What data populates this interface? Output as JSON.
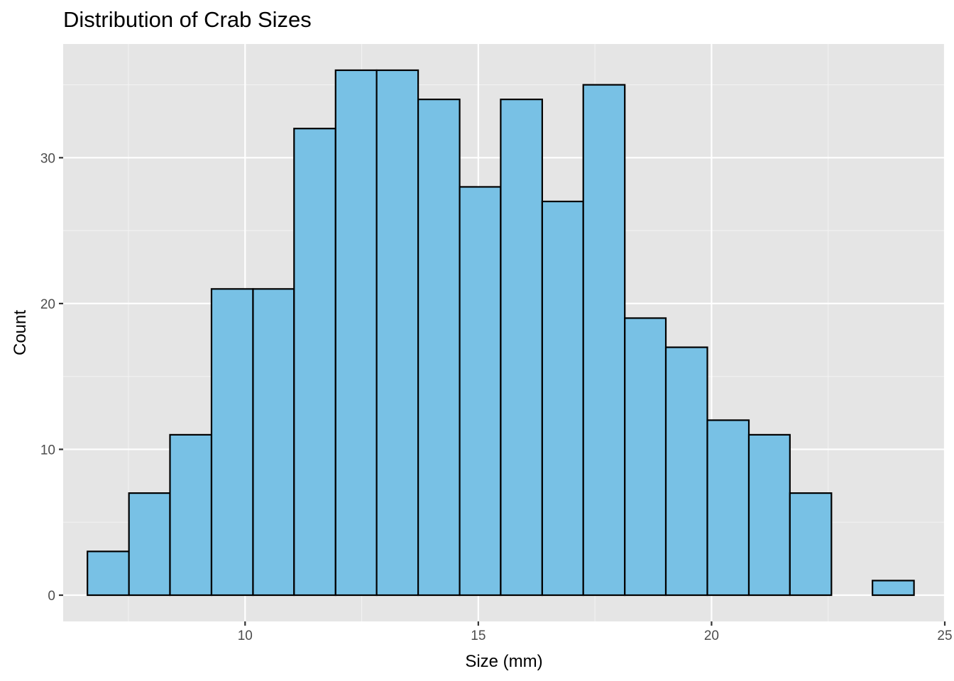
{
  "chart_data": {
    "type": "bar",
    "subtype": "histogram",
    "title": "Distribution of Crab Sizes",
    "xlabel": "Size (mm)",
    "ylabel": "Count",
    "xlim": [
      6.1,
      25.0
    ],
    "ylim": [
      -1.8,
      37.8
    ],
    "x_ticks": [
      10,
      15,
      20,
      25
    ],
    "y_ticks": [
      0,
      10,
      20,
      30
    ],
    "x_tick_labels": [
      "10",
      "15",
      "20",
      "25"
    ],
    "y_tick_labels": [
      "0",
      "10",
      "20",
      "30"
    ],
    "grid": true,
    "bins": [
      {
        "x0": 6.62,
        "x1": 7.51,
        "count": 3
      },
      {
        "x0": 7.51,
        "x1": 8.39,
        "count": 7
      },
      {
        "x0": 8.39,
        "x1": 9.28,
        "count": 11
      },
      {
        "x0": 9.28,
        "x1": 10.17,
        "count": 21
      },
      {
        "x0": 10.17,
        "x1": 11.05,
        "count": 21
      },
      {
        "x0": 11.05,
        "x1": 11.94,
        "count": 32
      },
      {
        "x0": 11.94,
        "x1": 12.82,
        "count": 36
      },
      {
        "x0": 12.82,
        "x1": 13.71,
        "count": 36
      },
      {
        "x0": 13.71,
        "x1": 14.6,
        "count": 34
      },
      {
        "x0": 14.6,
        "x1": 15.48,
        "count": 28
      },
      {
        "x0": 15.48,
        "x1": 16.37,
        "count": 34
      },
      {
        "x0": 16.37,
        "x1": 17.25,
        "count": 27
      },
      {
        "x0": 17.25,
        "x1": 18.14,
        "count": 35
      },
      {
        "x0": 18.14,
        "x1": 19.02,
        "count": 19
      },
      {
        "x0": 19.02,
        "x1": 19.91,
        "count": 17
      },
      {
        "x0": 19.91,
        "x1": 20.8,
        "count": 12
      },
      {
        "x0": 20.8,
        "x1": 21.68,
        "count": 11
      },
      {
        "x0": 21.68,
        "x1": 22.57,
        "count": 7
      },
      {
        "x0": 22.57,
        "x1": 23.45,
        "count": 0
      },
      {
        "x0": 23.45,
        "x1": 24.34,
        "count": 1
      }
    ],
    "colors": {
      "bar_fill": "#78c1e5",
      "bar_stroke": "#000000",
      "panel_background": "#e5e5e5",
      "grid_major": "#ffffff",
      "grid_minor": "#f2f2f2",
      "tick_label": "#4d4d4d",
      "tick_mark": "#333333"
    }
  }
}
